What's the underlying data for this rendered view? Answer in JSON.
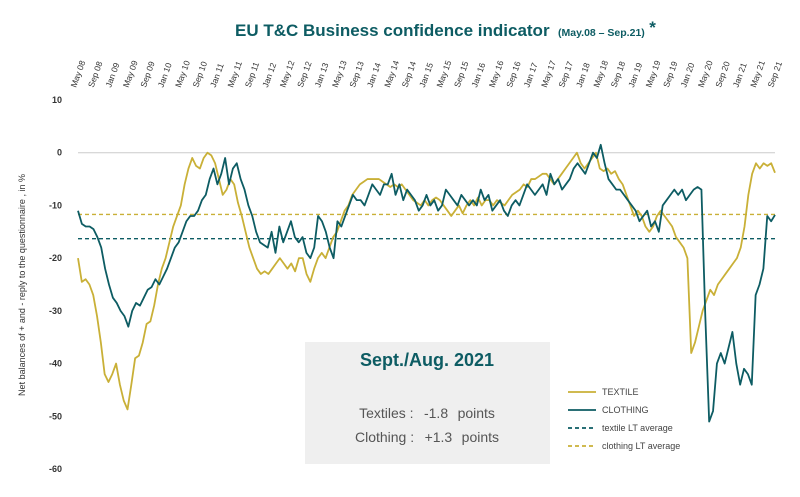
{
  "chart_data": {
    "type": "line",
    "title": "EU T&C Business confidence indicator",
    "subtitle": "(May.08 – Sep.21)",
    "title_mark": "*",
    "ylabel": "Net balances of + and - reply to the questionnaire , in %",
    "ylim": [
      -60,
      10
    ],
    "yticks": [
      10,
      0,
      -10,
      -20,
      -30,
      -40,
      -50,
      -60
    ],
    "grid": false,
    "legend_position": "bottom-right",
    "x_tick_labels": [
      "May 08",
      "Sep 08",
      "Jan 09",
      "May 09",
      "Sep 09",
      "Jan 10",
      "May 10",
      "Sep 10",
      "Jan 11",
      "May 11",
      "Sep 11",
      "Jan 12",
      "May 12",
      "Sep 12",
      "Jan 13",
      "May 13",
      "Sep 13",
      "Jan 14",
      "May 14",
      "Sep 14",
      "Jan 15",
      "May 15",
      "Sep 15",
      "Jan 16",
      "May 16",
      "Sep 16",
      "Jan 17",
      "May 17",
      "Sep 17",
      "Jan 18",
      "May 18",
      "Sep 18",
      "Jan 19",
      "May 19",
      "Sep 19",
      "Jan 20",
      "May 20",
      "Sep 20",
      "Jan 21",
      "May 21",
      "Sep 21"
    ],
    "x_start": "2008-05",
    "x_end": "2021-09",
    "reference_lines": [
      {
        "name": "textile LT average",
        "value": -16.3,
        "color": "#0d5c63"
      },
      {
        "name": "clothing LT average",
        "value": -11.7,
        "color": "#c9b037"
      }
    ],
    "series": [
      {
        "name": "TEXTILE",
        "color": "#c9b037",
        "values": [
          -20,
          -24.5,
          -24,
          -25,
          -27,
          -31,
          -36,
          -42,
          -43.5,
          -42,
          -40,
          -44,
          -47,
          -48.7,
          -44,
          -39,
          -38.5,
          -36,
          -32.5,
          -32,
          -29,
          -25,
          -22,
          -20,
          -17,
          -14,
          -12,
          -10,
          -6,
          -3,
          -1,
          -2.5,
          -3,
          -1,
          0,
          -0.5,
          -2,
          -5,
          -8,
          -7,
          -5,
          -6,
          -9.5,
          -12,
          -15,
          -18,
          -20,
          -22,
          -23,
          -22.5,
          -23,
          -22,
          -21,
          -20,
          -21,
          -22,
          -21,
          -22.5,
          -20,
          -20,
          -23,
          -24.5,
          -22,
          -20,
          -19,
          -20,
          -18,
          -16,
          -15,
          -13,
          -11,
          -10,
          -8,
          -7,
          -6,
          -5.5,
          -5,
          -5,
          -5,
          -5,
          -5.5,
          -6,
          -6.5,
          -6,
          -6.5,
          -6,
          -7,
          -8,
          -9,
          -9.5,
          -10,
          -9,
          -10,
          -9,
          -8.5,
          -9,
          -10,
          -11,
          -12,
          -11,
          -10,
          -11.5,
          -10,
          -9,
          -10,
          -8.5,
          -10,
          -9,
          -9,
          -10,
          -9,
          -9.5,
          -10,
          -9,
          -8,
          -7.5,
          -7,
          -6,
          -6.5,
          -5,
          -5,
          -4.5,
          -4,
          -4,
          -5,
          -6,
          -5,
          -4,
          -3,
          -2,
          -1,
          0,
          -2,
          -3,
          -2,
          -1,
          0,
          -3,
          -3.5,
          -3,
          -4,
          -3.5,
          -5,
          -6,
          -8,
          -10,
          -12,
          -11,
          -12,
          -14,
          -15,
          -14,
          -12,
          -11,
          -12,
          -13,
          -14,
          -16,
          -17,
          -18,
          -20,
          -38,
          -36,
          -33,
          -30,
          -28,
          -26,
          -27,
          -25,
          -24,
          -23,
          -22,
          -21,
          -20,
          -18,
          -14,
          -8,
          -4,
          -2,
          -3,
          -2,
          -2.5,
          -2,
          -3.8
        ]
      },
      {
        "name": "CLOTHING",
        "color": "#0d5c63",
        "values": [
          -11,
          -13.5,
          -14,
          -14,
          -14.5,
          -16,
          -18,
          -22,
          -25,
          -27.5,
          -28.5,
          -30,
          -31,
          -33,
          -30,
          -28.5,
          -29,
          -27.5,
          -26,
          -25.5,
          -24,
          -25,
          -23.5,
          -22,
          -20,
          -18,
          -17,
          -15,
          -13,
          -12,
          -12,
          -11,
          -9,
          -8,
          -5,
          -3,
          -6,
          -4,
          -1,
          -6,
          -3,
          -2,
          -5,
          -7,
          -10,
          -12,
          -15,
          -17,
          -17.5,
          -18,
          -15,
          -19,
          -14,
          -17,
          -15,
          -13,
          -16,
          -17,
          -16,
          -19,
          -20,
          -18,
          -12,
          -13,
          -15,
          -18,
          -20,
          -13,
          -14,
          -12,
          -10,
          -8,
          -9,
          -9,
          -10,
          -8,
          -6,
          -7,
          -8,
          -6,
          -6,
          -4,
          -8,
          -6,
          -9,
          -7,
          -8,
          -9,
          -11,
          -10,
          -8,
          -10,
          -9,
          -11,
          -10,
          -7,
          -8,
          -9,
          -10,
          -8,
          -9,
          -10,
          -9,
          -10,
          -7,
          -9,
          -8,
          -11,
          -10,
          -9,
          -11,
          -12,
          -10,
          -9,
          -10,
          -8,
          -6,
          -7,
          -8,
          -7,
          -6,
          -8,
          -4,
          -6,
          -5,
          -7,
          -6,
          -5,
          -3,
          -2,
          -3,
          -4,
          -2,
          0,
          -1,
          1.5,
          -2,
          -5,
          -6,
          -7,
          -7,
          -8,
          -9,
          -10,
          -11,
          -13,
          -12,
          -11,
          -14,
          -13,
          -15,
          -10,
          -9,
          -8,
          -7,
          -8,
          -7,
          -9,
          -8,
          -7,
          -6.5,
          -7,
          -31,
          -51,
          -49,
          -40,
          -38,
          -40,
          -37,
          -34,
          -40,
          -44,
          -41,
          -42,
          -44,
          -27,
          -25,
          -22,
          -12,
          -13,
          -11.8
        ]
      }
    ]
  },
  "summary_box": {
    "title": "Sept./Aug. 2021",
    "rows": [
      {
        "label": "Textiles :",
        "value": "-1.8",
        "unit": "points",
        "value_color": "#c0392b"
      },
      {
        "label": "Clothing :",
        "value": "+1.3",
        "unit": "points",
        "value_color": "#0d5c63"
      }
    ]
  },
  "legend": {
    "items": [
      {
        "label": "TEXTILE",
        "style": "solid",
        "color": "#c9b037"
      },
      {
        "label": "CLOTHING",
        "style": "solid",
        "color": "#0d5c63"
      },
      {
        "label": "textile LT average",
        "style": "dashed",
        "color": "#0d5c63"
      },
      {
        "label": "clothing LT average",
        "style": "dashed",
        "color": "#c9b037"
      }
    ]
  }
}
